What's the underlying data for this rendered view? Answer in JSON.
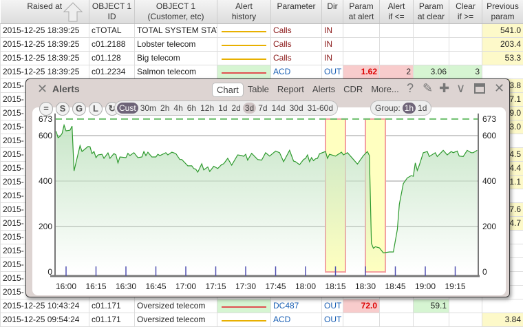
{
  "table": {
    "headers": [
      "Raised at",
      "OBJECT 1\nID",
      "OBJECT 1\n(Customer, etc)",
      "Alert\nhistory",
      "Parameter",
      "Dir",
      "Param\nat alert",
      "Alert\nif <=",
      "Param\nat clear",
      "Clear\nif >=",
      "Previous\nparam"
    ],
    "rows_top": [
      {
        "raised": "2015-12-25 18:39:25",
        "id": "cTOTAL",
        "customer": "TOTAL SYSTEM STAT",
        "history": "#e8b000",
        "param": "Calls",
        "dir": "IN",
        "prev": "541.0"
      },
      {
        "raised": "2015-12-25 18:39:25",
        "id": "c01.2188",
        "customer": "Lobster telecom",
        "history": "#e8b000",
        "param": "Calls",
        "dir": "IN",
        "prev": "203.4"
      },
      {
        "raised": "2015-12-25 18:39:25",
        "id": "c01.128",
        "customer": "Big telecom",
        "history": "#e8b000",
        "param": "Calls",
        "dir": "IN",
        "prev": "53.3"
      },
      {
        "raised": "2015-12-25 18:39:25",
        "id": "c01.2234",
        "customer": "Salmon telecom",
        "history": "#e05050",
        "param": "ACD",
        "dir": "OUT",
        "at_alert": "1.62",
        "alert_if": "2",
        "at_clear": "3.06",
        "clear_if": "3"
      }
    ],
    "rows_hidden": [
      {
        "raised": "2015-",
        "prev": "3.8"
      },
      {
        "raised": "2015-",
        "prev": "7.1"
      },
      {
        "raised": "2015-",
        "prev": "9.0"
      },
      {
        "raised": "2015-",
        "prev": "3.0"
      },
      {
        "raised": "2015-",
        "prev": ""
      },
      {
        "raised": "2015-",
        "prev": "4.5"
      },
      {
        "raised": "2015-",
        "prev": "4.4"
      },
      {
        "raised": "2015-",
        "prev": "1.1"
      },
      {
        "raised": "2015-",
        "prev": ""
      },
      {
        "raised": "2015-",
        "prev": "7.6"
      },
      {
        "raised": "2015-",
        "prev": "4.7"
      },
      {
        "raised": "2015-",
        "prev": ""
      },
      {
        "raised": "2015-",
        "prev": ""
      },
      {
        "raised": "2015-",
        "prev": ""
      },
      {
        "raised": "2015-",
        "prev": ""
      },
      {
        "raised": "2015-",
        "prev": ""
      }
    ],
    "rows_bottom": [
      {
        "raised": "2015-12-25 10:43:24",
        "id": "c01.171",
        "customer": "Oversized telecom",
        "history": "#e05050",
        "param": "DC487",
        "dir": "OUT",
        "at_alert": "72.0",
        "at_clear": "59.1"
      },
      {
        "raised": "2015-12-25 09:54:24",
        "id": "c01.171",
        "customer": "Oversized telecom",
        "history": "#e8b000",
        "param": "ACD",
        "dir": "OUT",
        "prev": "3.84"
      }
    ]
  },
  "modal": {
    "title": "Alerts",
    "tabs": [
      "Chart",
      "Table",
      "Report",
      "Alerts",
      "CDR",
      "More..."
    ],
    "active_tab": "Chart",
    "round_buttons": [
      "=",
      "S",
      "G",
      "L",
      "↻"
    ],
    "ranges": [
      "Cust",
      "30m",
      "2h",
      "4h",
      "6h",
      "12h",
      "1d",
      "2d",
      "3d",
      "7d",
      "14d",
      "30d",
      "31-60d"
    ],
    "range_selected": "Cust",
    "group_label": "Group:",
    "group_options": [
      "1h",
      "1d"
    ],
    "group_selected": "1h"
  },
  "chart_data": {
    "type": "area",
    "threshold": 673,
    "threshold_label": "673",
    "ylim": [
      0,
      673
    ],
    "yticks": [
      0,
      200,
      400,
      600
    ],
    "xticks": [
      "16:00",
      "16:15",
      "16:30",
      "16:45",
      "17:00",
      "17:15",
      "17:30",
      "17:45",
      "18:00",
      "18:15",
      "18:30",
      "18:45",
      "19:00",
      "19:15"
    ],
    "xlim": [
      "15:54",
      "19:27"
    ],
    "alert_bands": [
      [
        "18:10",
        "18:20"
      ],
      [
        "18:30",
        "18:40"
      ]
    ],
    "line_color": "#2e9a2e",
    "band_color": "#ffffc0",
    "points": [
      [
        "15:55",
        619
      ],
      [
        "15:56",
        591
      ],
      [
        "15:57",
        597
      ],
      [
        "15:58",
        609
      ],
      [
        "15:59",
        646
      ],
      [
        "16:00",
        621
      ],
      [
        "16:02",
        624
      ],
      [
        "16:03",
        642
      ],
      [
        "16:04",
        445
      ],
      [
        "16:07",
        556
      ],
      [
        "16:08",
        530
      ],
      [
        "16:11",
        552
      ],
      [
        "16:12",
        551
      ],
      [
        "16:13",
        521
      ],
      [
        "16:14",
        530
      ],
      [
        "16:15",
        503
      ],
      [
        "16:16",
        515
      ],
      [
        "16:18",
        518
      ],
      [
        "16:19",
        500
      ],
      [
        "16:21",
        524
      ],
      [
        "16:22",
        500
      ],
      [
        "16:24",
        521
      ],
      [
        "16:25",
        515
      ],
      [
        "16:26",
        480
      ],
      [
        "16:27",
        506
      ],
      [
        "16:30",
        503
      ],
      [
        "16:31",
        522
      ],
      [
        "16:32",
        512
      ],
      [
        "16:34",
        525
      ],
      [
        "16:36",
        503
      ],
      [
        "16:38",
        506
      ],
      [
        "16:39",
        530
      ],
      [
        "16:40",
        512
      ],
      [
        "16:41",
        527
      ],
      [
        "16:43",
        506
      ],
      [
        "16:45",
        506
      ],
      [
        "16:46",
        518
      ],
      [
        "16:47",
        512
      ],
      [
        "16:50",
        525
      ],
      [
        "16:51",
        515
      ],
      [
        "16:53",
        527
      ],
      [
        "16:55",
        521
      ],
      [
        "16:57",
        495
      ],
      [
        "16:58",
        495
      ],
      [
        "17:01",
        467
      ],
      [
        "17:03",
        467
      ],
      [
        "17:04",
        455
      ],
      [
        "17:05",
        452
      ],
      [
        "17:06",
        439
      ],
      [
        "17:08",
        476
      ],
      [
        "17:09",
        449
      ],
      [
        "17:11",
        462
      ],
      [
        "17:12",
        442
      ],
      [
        "17:14",
        465
      ],
      [
        "17:16",
        455
      ],
      [
        "17:18",
        473
      ],
      [
        "17:19",
        476
      ],
      [
        "17:21",
        500
      ],
      [
        "17:23",
        470
      ],
      [
        "17:26",
        515
      ],
      [
        "17:28",
        512
      ],
      [
        "17:29",
        509
      ],
      [
        "17:30",
        518
      ],
      [
        "17:31",
        492
      ],
      [
        "17:33",
        522
      ],
      [
        "17:36",
        495
      ],
      [
        "17:38",
        492
      ],
      [
        "17:40",
        525
      ],
      [
        "17:42",
        510
      ],
      [
        "17:45",
        532
      ],
      [
        "17:47",
        525
      ],
      [
        "17:49",
        485
      ],
      [
        "17:52",
        535
      ],
      [
        "17:54",
        488
      ],
      [
        "17:55",
        485
      ],
      [
        "17:57",
        472
      ],
      [
        "17:59",
        495
      ],
      [
        "18:00",
        500
      ],
      [
        "18:01",
        515
      ],
      [
        "18:02",
        485
      ],
      [
        "18:03",
        503
      ],
      [
        "18:04",
        490
      ],
      [
        "18:05",
        498
      ],
      [
        "18:06",
        500
      ],
      [
        "18:07",
        520
      ],
      [
        "18:10",
        530
      ],
      [
        "18:11",
        500
      ],
      [
        "18:12",
        518
      ],
      [
        "18:15",
        510
      ],
      [
        "18:18",
        527
      ],
      [
        "18:19",
        515
      ],
      [
        "18:21",
        525
      ],
      [
        "18:23",
        505
      ],
      [
        "18:26",
        475
      ],
      [
        "18:29",
        512
      ],
      [
        "18:31",
        530
      ],
      [
        "18:32",
        512
      ],
      [
        "18:33",
        126
      ],
      [
        "18:34",
        104
      ],
      [
        "18:35",
        111
      ],
      [
        "18:37",
        106
      ],
      [
        "18:39",
        84
      ],
      [
        "18:42",
        88
      ],
      [
        "18:44",
        88
      ],
      [
        "18:46",
        187
      ],
      [
        "18:47",
        298
      ],
      [
        "18:49",
        389
      ],
      [
        "18:51",
        414
      ],
      [
        "18:53",
        424
      ],
      [
        "18:54",
        421
      ],
      [
        "18:55",
        480
      ],
      [
        "18:56",
        447
      ],
      [
        "18:57",
        470
      ],
      [
        "18:59",
        525
      ],
      [
        "19:01",
        530
      ],
      [
        "19:02",
        508
      ],
      [
        "19:05",
        525
      ],
      [
        "19:06",
        508
      ],
      [
        "19:09",
        535
      ],
      [
        "19:11",
        515
      ],
      [
        "19:13",
        530
      ],
      [
        "19:14",
        525
      ],
      [
        "19:16",
        532
      ],
      [
        "19:17",
        510
      ],
      [
        "19:19",
        508
      ],
      [
        "19:21",
        535
      ],
      [
        "19:23",
        525
      ],
      [
        "19:24",
        525
      ],
      [
        "19:26",
        535
      ]
    ]
  }
}
